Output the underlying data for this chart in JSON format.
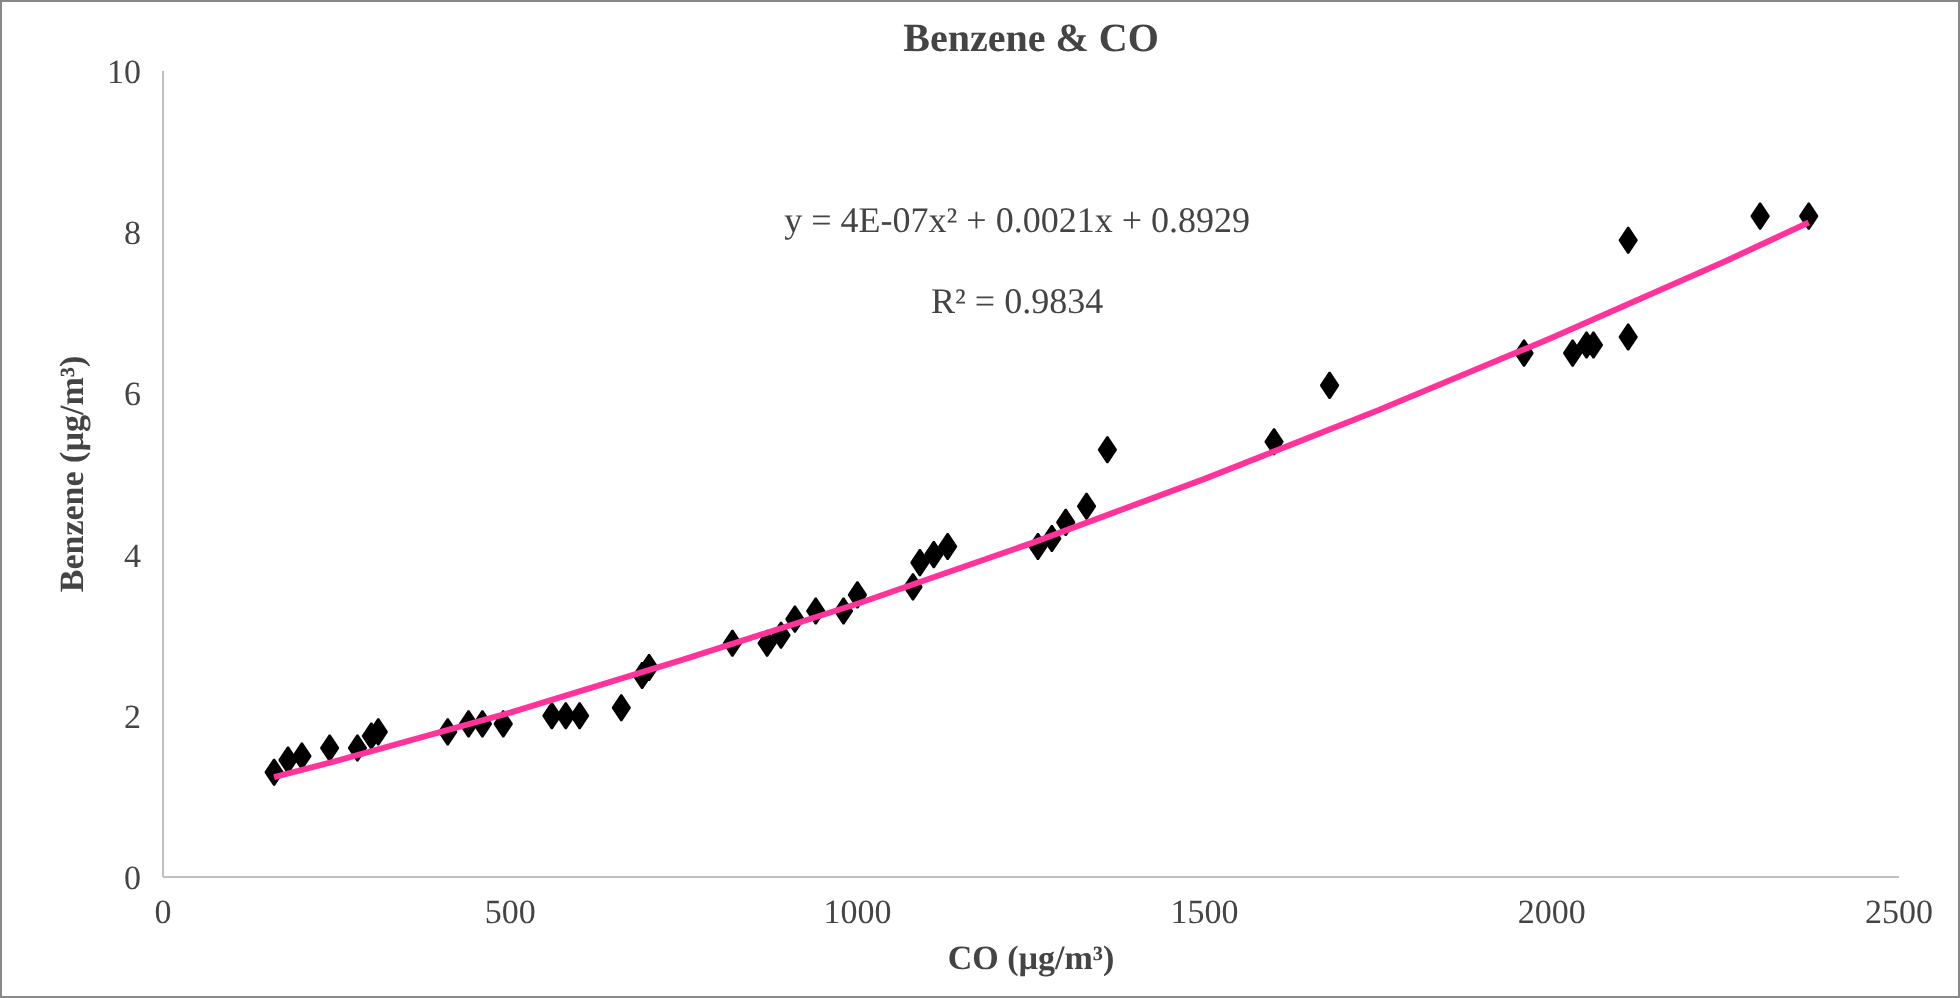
{
  "chart_data": {
    "type": "scatter",
    "title": "Benzene & CO",
    "xlabel": "CO (µg/m³)",
    "ylabel": "Benzene (µg/m³)",
    "xlim": [
      0,
      2500
    ],
    "xticks": [
      0,
      500,
      1000,
      1500,
      2000,
      2500
    ],
    "ylim": [
      0,
      10
    ],
    "yticks": [
      0,
      2,
      4,
      6,
      8,
      10
    ],
    "grid": false,
    "marker": "diamond",
    "annotations": [
      "y = 4E-07x² + 0.0021x + 0.8929",
      "R² = 0.9834"
    ],
    "series": [
      {
        "color": "#000000",
        "x": [
          160,
          180,
          200,
          240,
          280,
          300,
          310,
          410,
          440,
          460,
          490,
          560,
          580,
          600,
          660,
          690,
          700,
          820,
          870,
          890,
          910,
          940,
          980,
          1000,
          1080,
          1090,
          1110,
          1130,
          1260,
          1280,
          1300,
          1330,
          1360,
          1600,
          1680,
          1960,
          2030,
          2050,
          2060,
          2110,
          2110,
          2300,
          2370
        ],
        "values": [
          1.3,
          1.45,
          1.5,
          1.6,
          1.6,
          1.75,
          1.8,
          1.8,
          1.9,
          1.9,
          1.9,
          2.0,
          2.0,
          2.0,
          2.1,
          2.5,
          2.6,
          2.9,
          2.9,
          3.0,
          3.2,
          3.3,
          3.3,
          3.5,
          3.6,
          3.9,
          4.0,
          4.1,
          4.1,
          4.2,
          4.4,
          4.6,
          5.3,
          5.4,
          6.1,
          6.5,
          6.5,
          6.6,
          6.6,
          6.7,
          7.9,
          8.2,
          8.2
        ]
      },
      {
        "type": "line",
        "marker": "none",
        "color": "#ff3399",
        "line_style": "solid",
        "x": [
          160,
          250,
          500,
          750,
          1000,
          1250,
          1500,
          1750,
          2000,
          2250,
          2370
        ],
        "values": [
          1.24,
          1.44,
          2.04,
          2.7,
          3.39,
          4.14,
          4.94,
          5.79,
          6.69,
          7.64,
          8.12
        ]
      }
    ]
  }
}
